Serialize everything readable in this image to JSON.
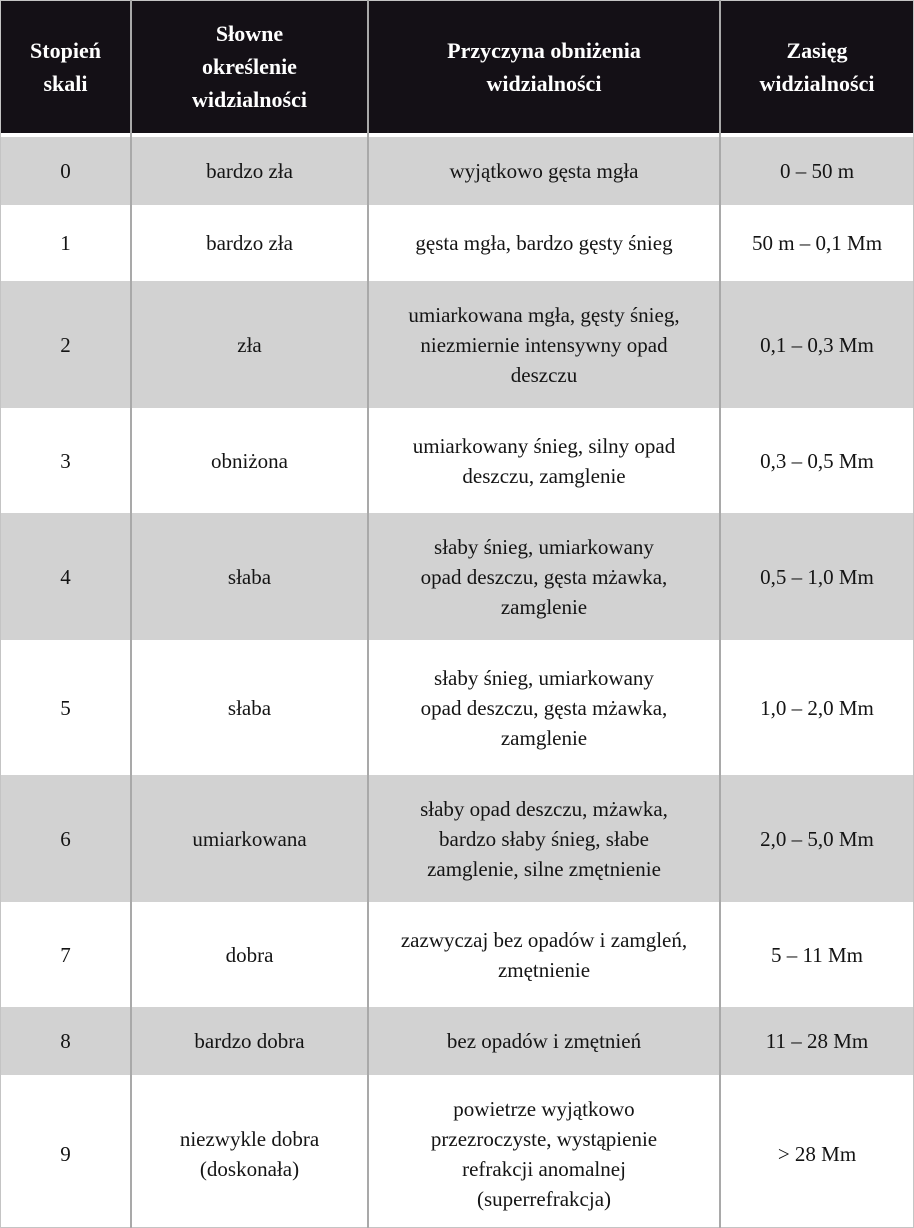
{
  "table": {
    "columns": [
      {
        "label": "Stopień\nskali"
      },
      {
        "label": "Słowne\nokreślenie\nwidzialności"
      },
      {
        "label": "Przyczyna obniżenia\nwidzialności"
      },
      {
        "label": "Zasięg\nwidzialności"
      }
    ],
    "rows": [
      {
        "scale": "0",
        "verbal": "bardzo zła",
        "cause": "wyjątkowo gęsta mgła",
        "range": "0 – 50 m"
      },
      {
        "scale": "1",
        "verbal": "bardzo zła",
        "cause": "gęsta mgła, bardzo gęsty śnieg",
        "range": "50 m – 0,1 Mm"
      },
      {
        "scale": "2",
        "verbal": "zła",
        "cause": "umiarkowana mgła, gęsty śnieg,\nniezmiernie intensywny opad\ndeszczu",
        "range": "0,1 – 0,3 Mm"
      },
      {
        "scale": "3",
        "verbal": "obniżona",
        "cause": "umiarkowany śnieg, silny opad\ndeszczu, zamglenie",
        "range": "0,3 – 0,5 Mm"
      },
      {
        "scale": "4",
        "verbal": "słaba",
        "cause": "słaby śnieg, umiarkowany\nopad deszczu, gęsta mżawka,\nzamglenie",
        "range": "0,5 – 1,0 Mm"
      },
      {
        "scale": "5",
        "verbal": "słaba",
        "cause": "słaby śnieg, umiarkowany\nopad deszczu, gęsta mżawka,\nzamglenie",
        "range": "1,0 – 2,0 Mm"
      },
      {
        "scale": "6",
        "verbal": "umiarkowana",
        "cause": "słaby opad deszczu, mżawka,\nbardzo słaby śnieg, słabe\nzamglenie, silne zmętnienie",
        "range": "2,0 – 5,0 Mm"
      },
      {
        "scale": "7",
        "verbal": "dobra",
        "cause": "zazwyczaj bez opadów i zamgleń,\nzmętnienie",
        "range": "5 – 11 Mm"
      },
      {
        "scale": "8",
        "verbal": "bardzo dobra",
        "cause": "bez opadów i zmętnień",
        "range": "11 – 28 Mm"
      },
      {
        "scale": "9",
        "verbal": "niezwykle dobra\n(doskonała)",
        "cause": "powietrze wyjątkowo\nprzezroczyste, wystąpienie\nrefrakcji anomalnej\n(superrefrakcja)",
        "range": "> 28 Mm"
      }
    ]
  },
  "colors": {
    "header_bg": "#141016",
    "header_text": "#ffffff",
    "shaded_row_bg": "#d2d2d2",
    "plain_row_bg": "#ffffff",
    "column_divider": "#a9a9a9",
    "body_text": "#141414"
  }
}
